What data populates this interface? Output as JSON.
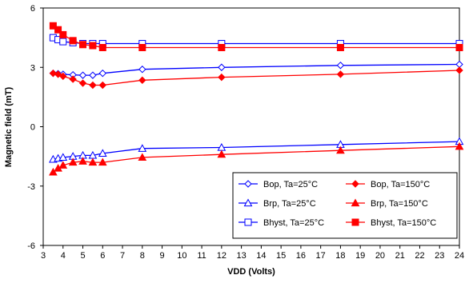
{
  "chart_data": {
    "type": "line",
    "title": "",
    "xlabel": "VDD (Volts)",
    "ylabel": "Magnetic field (mT)",
    "xlim": [
      3,
      24
    ],
    "ylim": [
      -6,
      6
    ],
    "xticks": [
      3,
      4,
      5,
      6,
      7,
      8,
      9,
      10,
      11,
      12,
      13,
      14,
      15,
      16,
      17,
      18,
      19,
      20,
      21,
      22,
      23,
      24
    ],
    "yticks": [
      -6,
      -3,
      0,
      3,
      6
    ],
    "grid": false,
    "legend_position": "bottom-right",
    "colors": {
      "blue": "#0000ff",
      "red": "#ff0000"
    },
    "x": [
      3.5,
      3.75,
      4,
      4.5,
      5,
      5.5,
      6,
      8,
      12,
      18,
      24
    ],
    "series": [
      {
        "name": "Bop, Ta=25°C",
        "color": "#0000ff",
        "marker": "diamond-open",
        "values": [
          2.7,
          2.68,
          2.65,
          2.62,
          2.6,
          2.6,
          2.7,
          2.9,
          3.0,
          3.1,
          3.15
        ]
      },
      {
        "name": "Bop, Ta=150°C",
        "color": "#ff0000",
        "marker": "diamond-filled",
        "values": [
          2.7,
          2.65,
          2.55,
          2.4,
          2.2,
          2.1,
          2.1,
          2.35,
          2.5,
          2.65,
          2.85
        ]
      },
      {
        "name": "Brp, Ta=25°C",
        "color": "#0000ff",
        "marker": "triangle-open",
        "values": [
          -1.65,
          -1.6,
          -1.55,
          -1.5,
          -1.45,
          -1.45,
          -1.35,
          -1.1,
          -1.05,
          -0.9,
          -0.75
        ]
      },
      {
        "name": "Brp, Ta=150°C",
        "color": "#ff0000",
        "marker": "triangle-filled",
        "values": [
          -2.3,
          -2.1,
          -1.95,
          -1.8,
          -1.75,
          -1.8,
          -1.8,
          -1.55,
          -1.4,
          -1.2,
          -1.0
        ]
      },
      {
        "name": "Bhyst, Ta=25°C",
        "color": "#0000ff",
        "marker": "square-open",
        "values": [
          4.5,
          4.4,
          4.3,
          4.25,
          4.2,
          4.2,
          4.2,
          4.2,
          4.2,
          4.2,
          4.2
        ]
      },
      {
        "name": "Bhyst, Ta=150°C",
        "color": "#ff0000",
        "marker": "square-filled",
        "values": [
          5.1,
          4.9,
          4.65,
          4.35,
          4.15,
          4.1,
          4.0,
          4.0,
          4.0,
          4.0,
          4.0
        ]
      }
    ]
  }
}
